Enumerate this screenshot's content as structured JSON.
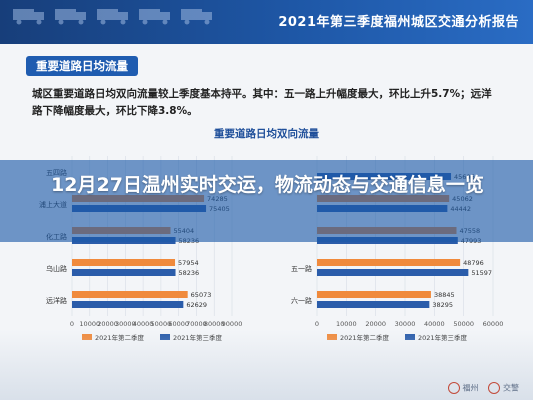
{
  "header": {
    "title": "2021年第三季度福州城区交通分析报告"
  },
  "section": {
    "label": "重要道路日均流量"
  },
  "summary": {
    "text": "城区重要道路日均双向流量较上季度基本持平。其中：五一路上升幅度最大，环比上升5.7%；远洋路下降幅度最大，环比下降3.8%。"
  },
  "overlay": {
    "headline": "12月27日温州实时交运，物流动态与交通信息一览"
  },
  "footer": {
    "logo_left": "福州",
    "logo_right": "交警"
  },
  "colors": {
    "series_2021q2": "#f08a3c",
    "series_2021q3": "#2a5caa"
  },
  "chart_data": [
    {
      "type": "bar",
      "orientation": "horizontal",
      "title": "重要道路日均双向流量",
      "categories": [
        "五四路",
        "浦上大道",
        "化工路",
        "乌山路",
        "远洋路"
      ],
      "series": [
        {
          "name": "2021年第二季度",
          "values": [
            null,
            74285,
            55404,
            57954,
            65073
          ]
        },
        {
          "name": "2021年第三季度",
          "values": [
            null,
            75405,
            58236,
            58236,
            62629
          ]
        }
      ],
      "xlim": [
        0,
        90000
      ],
      "xticks": [
        0,
        10000,
        20000,
        30000,
        40000,
        50000,
        60000,
        70000,
        80000,
        90000
      ],
      "legend": "bottom",
      "grid": true
    },
    {
      "type": "bar",
      "orientation": "horizontal",
      "categories": [
        "",
        "",
        "",
        "五一路",
        "六一路"
      ],
      "series": [
        {
          "name": "2021年第二季度",
          "values": [
            null,
            45062,
            47558,
            48796,
            38845
          ]
        },
        {
          "name": "2021年第三季度",
          "values": [
            45696,
            44442,
            47993,
            51597,
            38295
          ]
        }
      ],
      "xlim": [
        0,
        60000
      ],
      "xticks": [
        0,
        10000,
        20000,
        30000,
        40000,
        50000,
        60000
      ],
      "legend": "bottom",
      "grid": true
    }
  ]
}
